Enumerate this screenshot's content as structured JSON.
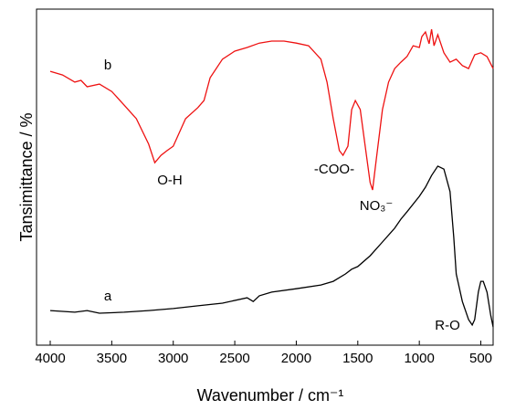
{
  "chart_data": {
    "type": "line",
    "x_label": "Wavenumber / cm⁻¹",
    "y_label": "Tansimittance / %",
    "xlim": [
      4000,
      400
    ],
    "ylim": [
      0,
      100
    ],
    "xticks": [
      4000,
      3500,
      3000,
      2500,
      2000,
      1500,
      1000,
      500
    ],
    "grid": false,
    "series": [
      {
        "name": "a",
        "color": "#000000",
        "x": [
          4000,
          3800,
          3700,
          3600,
          3400,
          3200,
          3000,
          2800,
          2600,
          2400,
          2350,
          2300,
          2200,
          2000,
          1800,
          1700,
          1600,
          1550,
          1500,
          1400,
          1300,
          1200,
          1150,
          1100,
          1000,
          950,
          900,
          850,
          800,
          750,
          720,
          700,
          650,
          600,
          570,
          550,
          520,
          500,
          480,
          450,
          420,
          400
        ],
        "values": [
          10.3,
          9.8,
          10.3,
          9.5,
          9.8,
          10.3,
          10.9,
          11.7,
          12.5,
          14.1,
          13.0,
          14.7,
          15.8,
          16.8,
          17.9,
          19.0,
          21.2,
          22.6,
          23.4,
          26.6,
          30.7,
          34.8,
          37.5,
          39.7,
          44.3,
          47.0,
          50.5,
          53.3,
          52.4,
          45.7,
          32.1,
          21.2,
          13.0,
          7.6,
          6.0,
          7.6,
          15.8,
          19.0,
          19.0,
          15.8,
          9.0,
          5.4
        ]
      },
      {
        "name": "b",
        "color": "#ee1111",
        "x": [
          4000,
          3900,
          3800,
          3750,
          3700,
          3600,
          3500,
          3400,
          3300,
          3200,
          3150,
          3100,
          3050,
          3000,
          2900,
          2800,
          2750,
          2700,
          2600,
          2500,
          2400,
          2300,
          2200,
          2100,
          2000,
          1900,
          1800,
          1750,
          1700,
          1650,
          1620,
          1580,
          1550,
          1520,
          1480,
          1440,
          1400,
          1380,
          1350,
          1300,
          1250,
          1200,
          1150,
          1100,
          1050,
          1000,
          980,
          950,
          920,
          900,
          880,
          850,
          800,
          750,
          700,
          650,
          600,
          550,
          500,
          450,
          400
        ],
        "values": [
          81.5,
          80.4,
          78.3,
          78.8,
          76.9,
          77.7,
          75.5,
          71.5,
          67.4,
          59.8,
          54.3,
          56.5,
          57.9,
          59.2,
          67.4,
          70.7,
          72.8,
          79.6,
          85.1,
          87.5,
          88.6,
          89.9,
          90.5,
          90.5,
          89.9,
          89.1,
          85.1,
          78.3,
          67.4,
          57.9,
          56.5,
          59.2,
          70.1,
          72.8,
          70.1,
          59.2,
          48.4,
          46.2,
          55.2,
          70.1,
          78.3,
          82.3,
          84.2,
          85.9,
          89.1,
          88.6,
          91.8,
          93.2,
          89.7,
          94.0,
          89.1,
          92.4,
          87.0,
          84.2,
          85.1,
          83.2,
          82.3,
          86.4,
          87.0,
          85.9,
          82.3
        ]
      }
    ],
    "annotations": [
      "b",
      "O-H",
      "-COO-",
      "NO₃⁻",
      "a",
      "R-O"
    ]
  }
}
